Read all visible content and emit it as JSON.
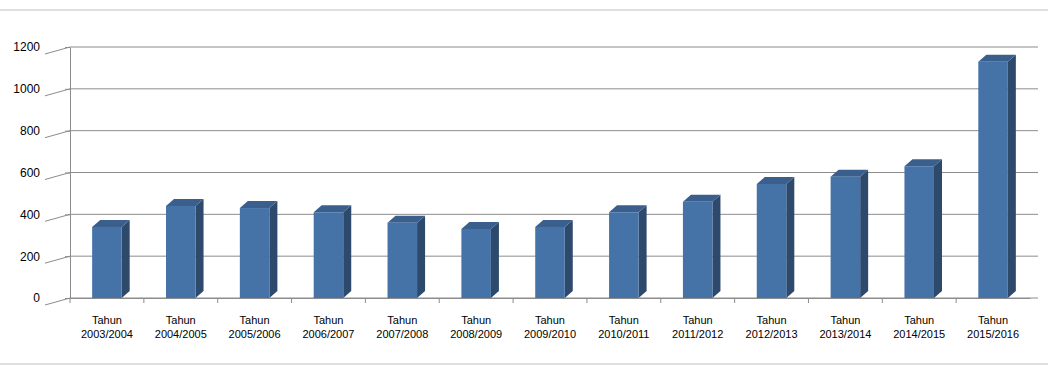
{
  "chart_data": {
    "type": "bar",
    "categories": [
      "Tahun 2003/2004",
      "Tahun 2004/2005",
      "Tahun 2005/2006",
      "Tahun 2006/2007",
      "Tahun 2007/2008",
      "Tahun 2008/2009",
      "Tahun 2009/2010",
      "Tahun 2010/2011",
      "Tahun 2011/2012",
      "Tahun 2012/2013",
      "Tahun 2013/2014",
      "Tahun 2014/2015",
      "Tahun 2015/2016"
    ],
    "values": [
      340,
      440,
      430,
      410,
      360,
      330,
      340,
      410,
      460,
      545,
      580,
      630,
      1130
    ],
    "color": "#4572a7",
    "ylim": [
      0,
      1200
    ],
    "yticks": [
      0,
      200,
      400,
      600,
      800,
      1000,
      1200
    ],
    "grid": true
  }
}
